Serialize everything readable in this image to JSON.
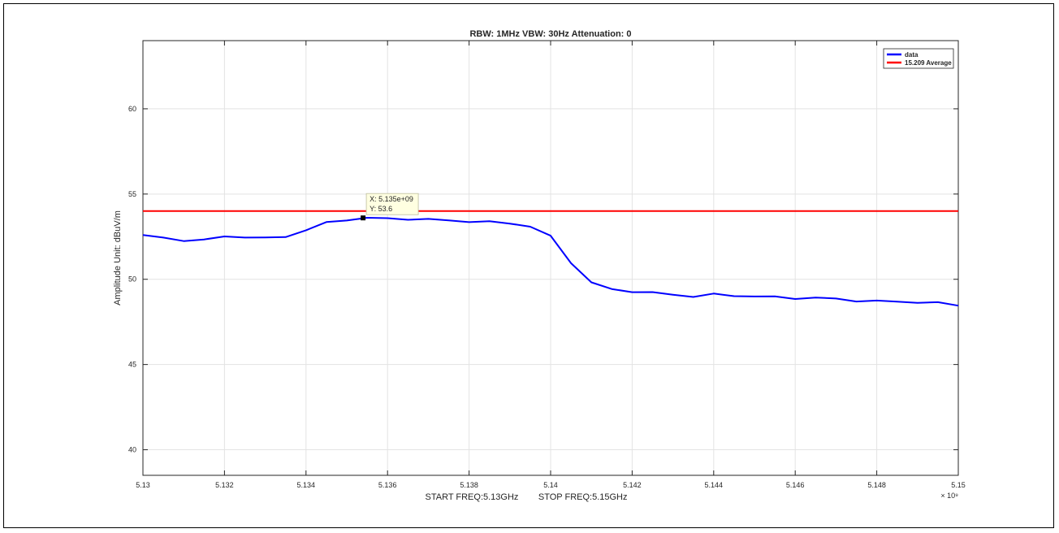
{
  "chart_data": {
    "type": "line",
    "title": "RBW: 1MHz   VBW: 30Hz  Attenuation: 0",
    "xlabel": "START FREQ:5.13GHz        STOP FREQ:5.15GHz",
    "ylabel": "Amplitude Unit: dBuV/m",
    "x_exponent_label": "× 10⁹",
    "xlim": [
      5.13,
      5.15
    ],
    "ylim": [
      38.5,
      64
    ],
    "x_ticks": [
      5.13,
      5.132,
      5.134,
      5.136,
      5.138,
      5.14,
      5.142,
      5.144,
      5.146,
      5.148,
      5.15
    ],
    "x_tick_labels": [
      "5.13",
      "5.132",
      "5.134",
      "5.136",
      "5.138",
      "5.14",
      "5.142",
      "5.144",
      "5.146",
      "5.148",
      "5.15"
    ],
    "y_ticks": [
      40,
      45,
      50,
      55,
      60
    ],
    "y_tick_labels": [
      "40",
      "45",
      "50",
      "55",
      "60"
    ],
    "grid": true,
    "legend_position": "top-right",
    "series": [
      {
        "name": "data",
        "color": "#0000ff",
        "x": [
          5.13,
          5.1305,
          5.131,
          5.1315,
          5.132,
          5.1325,
          5.133,
          5.1335,
          5.134,
          5.1345,
          5.135,
          5.1355,
          5.136,
          5.1365,
          5.137,
          5.1375,
          5.138,
          5.1385,
          5.139,
          5.1395,
          5.14,
          5.1405,
          5.141,
          5.1415,
          5.142,
          5.1425,
          5.143,
          5.1435,
          5.144,
          5.1445,
          5.145,
          5.1455,
          5.146,
          5.1465,
          5.147,
          5.1475,
          5.148,
          5.1485,
          5.149,
          5.1495,
          5.15
        ],
        "y": [
          52.6,
          52.4,
          52.3,
          52.3,
          52.5,
          52.5,
          52.4,
          52.5,
          52.9,
          53.3,
          53.5,
          53.6,
          53.55,
          53.55,
          53.5,
          53.45,
          53.4,
          53.35,
          53.3,
          53.1,
          52.5,
          51.0,
          49.8,
          49.4,
          49.3,
          49.2,
          49.1,
          49.0,
          49.1,
          49.05,
          49.0,
          48.95,
          48.9,
          48.9,
          48.85,
          48.75,
          48.7,
          48.7,
          48.65,
          48.6,
          48.5
        ]
      },
      {
        "name": "15.209 Average",
        "color": "#ff0000",
        "x": [
          5.13,
          5.15
        ],
        "y": [
          54,
          54
        ]
      }
    ],
    "annotations": [
      {
        "x": 5.1354,
        "y": 53.6,
        "text_x": "X: 5.135e+09",
        "text_y": "Y: 53.6"
      }
    ]
  }
}
